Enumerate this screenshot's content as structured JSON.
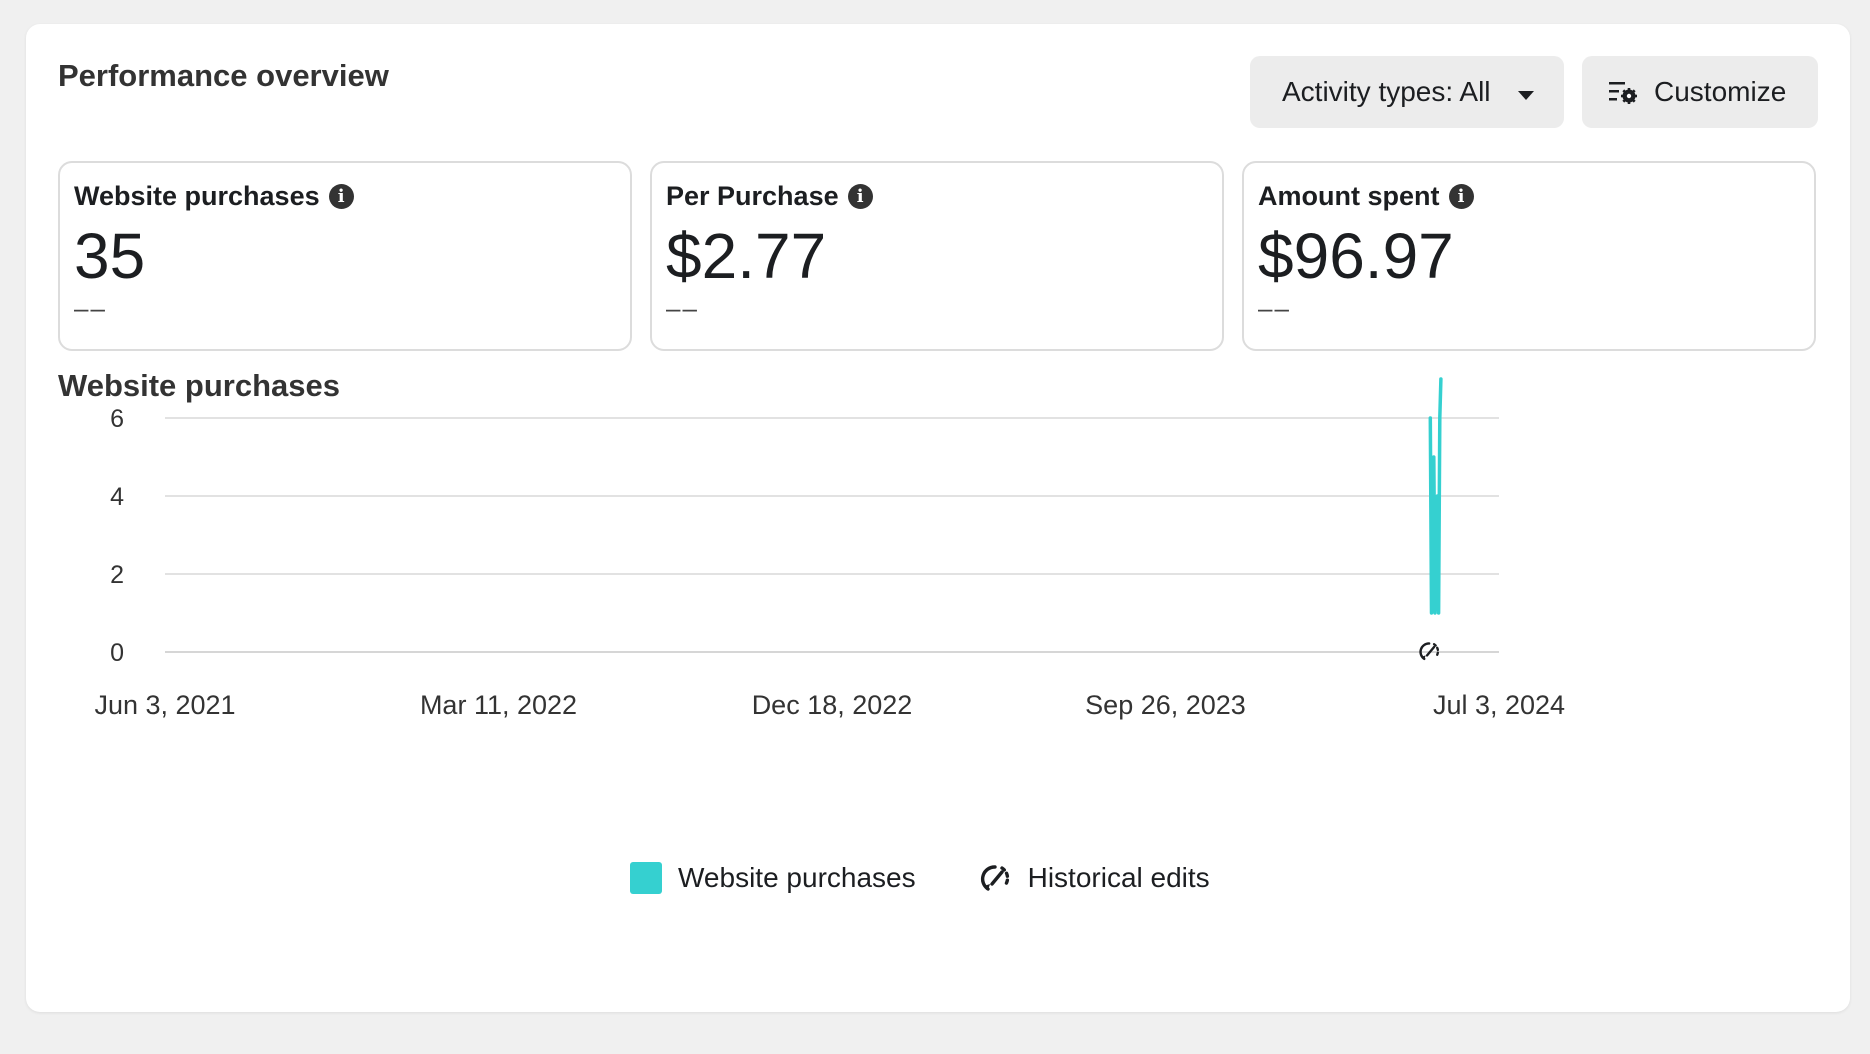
{
  "header": {
    "title": "Performance overview",
    "activity_button": "Activity types: All",
    "customize_button": "Customize"
  },
  "metrics": [
    {
      "label": "Website purchases",
      "value": "35",
      "change": "––"
    },
    {
      "label": "Per Purchase",
      "value": "$2.77",
      "change": "––"
    },
    {
      "label": "Amount spent",
      "value": "$96.97",
      "change": "––"
    }
  ],
  "chart_section": {
    "title": "Website purchases"
  },
  "chart_data": {
    "type": "line",
    "title": "Website purchases",
    "xlabel": "",
    "ylabel": "",
    "x_ticks": [
      "Jun 3, 2021",
      "Mar 11, 2022",
      "Dec 18, 2022",
      "Sep 26, 2023",
      "Jul 3, 2024"
    ],
    "y_ticks": [
      0,
      2,
      4,
      6
    ],
    "xlim": [
      "2021-06-03",
      "2024-07-03"
    ],
    "ylim": [
      0,
      7.5
    ],
    "grid": true,
    "legend": "bottom",
    "series": [
      {
        "name": "Website purchases",
        "color": "#35d0d0",
        "points": [
          {
            "x": "2024-05-06",
            "y": 6
          },
          {
            "x": "2024-05-07",
            "y": 1
          },
          {
            "x": "2024-05-08",
            "y": 3
          },
          {
            "x": "2024-05-09",
            "y": 5
          },
          {
            "x": "2024-05-10",
            "y": 1
          },
          {
            "x": "2024-05-11",
            "y": 2
          },
          {
            "x": "2024-05-12",
            "y": 4
          },
          {
            "x": "2024-05-13",
            "y": 1
          },
          {
            "x": "2024-05-14",
            "y": 6
          },
          {
            "x": "2024-05-15",
            "y": 7
          }
        ]
      }
    ],
    "markers": [
      {
        "name": "Historical edits",
        "x": "2024-05-06",
        "icon": "historical-edit-icon"
      }
    ]
  },
  "legend": {
    "items": [
      {
        "label": "Website purchases",
        "color": "#35d0d0"
      },
      {
        "label": "Historical edits",
        "icon": "historical-edit-icon"
      }
    ]
  }
}
